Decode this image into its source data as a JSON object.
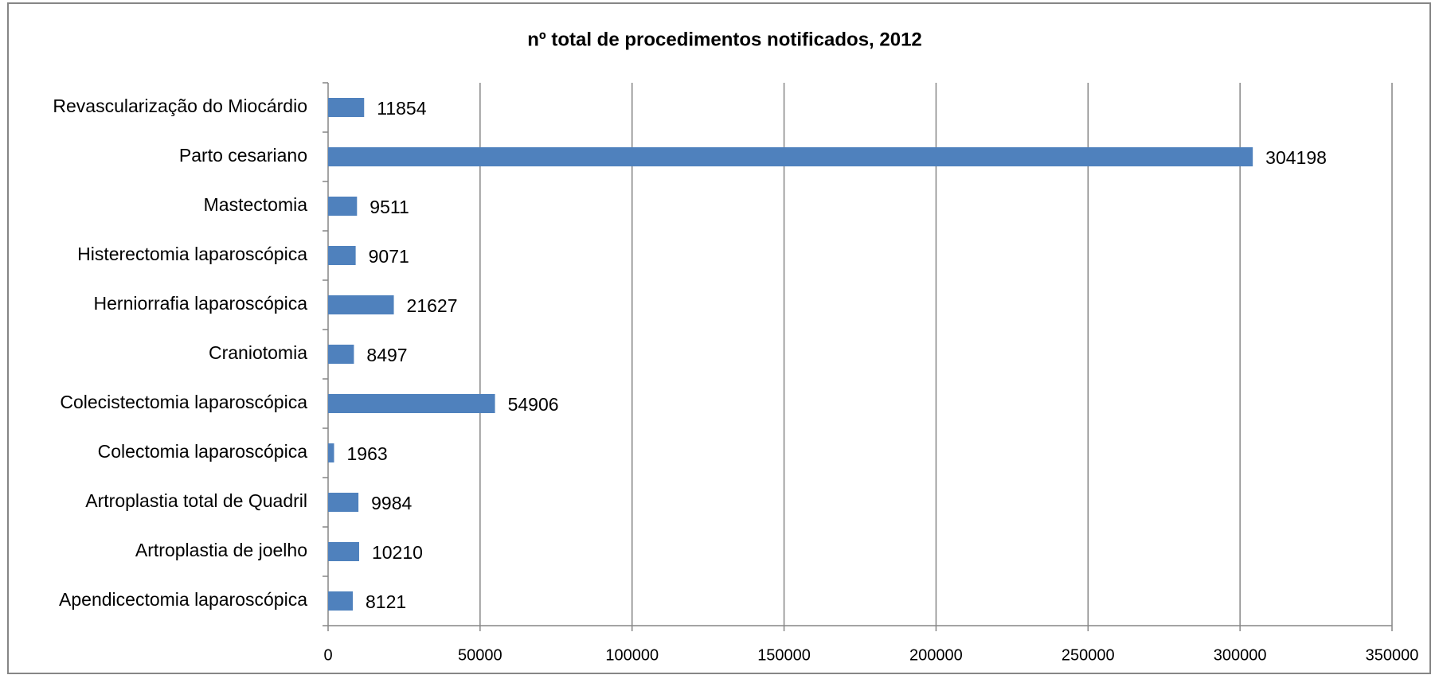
{
  "chart_data": {
    "type": "bar",
    "orientation": "horizontal",
    "title": "nº total de procedimentos notificados, 2012",
    "categories": [
      "Revascularização do Miocárdio",
      "Parto cesariano",
      "Mastectomia",
      "Histerectomia laparoscópica",
      "Herniorrafia laparoscópica",
      "Craniotomia",
      "Colecistectomia laparoscópica",
      "Colectomia laparoscópica",
      "Artroplastia total  de Quadril",
      "Artroplastia de joelho",
      "Apendicectomia laparoscópica"
    ],
    "values": [
      11854,
      304198,
      9511,
      9071,
      21627,
      8497,
      54906,
      1963,
      9984,
      10210,
      8121
    ],
    "color": "#4f81bd",
    "xlim": [
      0,
      350000
    ],
    "xticks": [
      0,
      50000,
      100000,
      150000,
      200000,
      250000,
      300000,
      350000
    ],
    "grid": true
  }
}
